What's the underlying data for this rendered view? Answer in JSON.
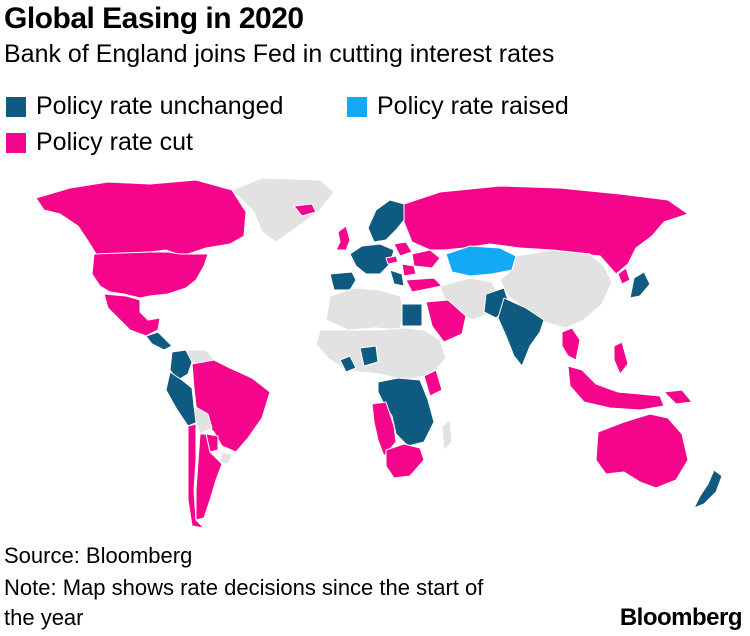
{
  "title": "Global Easing in 2020",
  "subtitle": "Bank of England joins Fed in cutting interest rates",
  "legend": {
    "unchanged": "Policy rate unchanged",
    "raised": "Policy rate raised",
    "cut": "Policy rate cut"
  },
  "colors": {
    "unchanged": "#0e5a80",
    "raised": "#12a9f5",
    "cut": "#f5058c",
    "no_data": "#e2e2e2",
    "background": "#ffffff"
  },
  "source": "Source: Bloomberg",
  "note_line1": "Note: Map shows rate decisions since the start of",
  "note_line2": "the year",
  "brand": "Bloomberg",
  "regions": [
    {
      "id": "canada",
      "status": "cut"
    },
    {
      "id": "united-states",
      "status": "cut"
    },
    {
      "id": "mexico",
      "status": "cut"
    },
    {
      "id": "greenland",
      "status": "no_data"
    },
    {
      "id": "central-america",
      "status": "unchanged"
    },
    {
      "id": "colombia",
      "status": "unchanged"
    },
    {
      "id": "venezuela",
      "status": "no_data"
    },
    {
      "id": "peru",
      "status": "unchanged"
    },
    {
      "id": "brazil",
      "status": "cut"
    },
    {
      "id": "bolivia",
      "status": "no_data"
    },
    {
      "id": "chile",
      "status": "cut"
    },
    {
      "id": "argentina",
      "status": "cut"
    },
    {
      "id": "paraguay",
      "status": "cut"
    },
    {
      "id": "uruguay",
      "status": "no_data"
    },
    {
      "id": "united-kingdom",
      "status": "cut"
    },
    {
      "id": "iceland",
      "status": "cut"
    },
    {
      "id": "iberia",
      "status": "unchanged"
    },
    {
      "id": "western-europe",
      "status": "unchanged"
    },
    {
      "id": "scandinavia",
      "status": "unchanged"
    },
    {
      "id": "poland",
      "status": "cut"
    },
    {
      "id": "czech-republic",
      "status": "cut"
    },
    {
      "id": "romania",
      "status": "cut"
    },
    {
      "id": "ukraine",
      "status": "cut"
    },
    {
      "id": "balkans",
      "status": "unchanged"
    },
    {
      "id": "turkey",
      "status": "cut"
    },
    {
      "id": "russia",
      "status": "cut"
    },
    {
      "id": "kazakhstan",
      "status": "raised"
    },
    {
      "id": "mongolia-china",
      "status": "no_data"
    },
    {
      "id": "japan",
      "status": "unchanged"
    },
    {
      "id": "south-korea",
      "status": "cut"
    },
    {
      "id": "north-africa",
      "status": "no_data"
    },
    {
      "id": "egypt",
      "status": "unchanged"
    },
    {
      "id": "saudi-arabia",
      "status": "cut"
    },
    {
      "id": "middle-east",
      "status": "no_data"
    },
    {
      "id": "pakistan",
      "status": "unchanged"
    },
    {
      "id": "india",
      "status": "unchanged"
    },
    {
      "id": "myanmar-thailand",
      "status": "cut"
    },
    {
      "id": "indonesia-malaysia",
      "status": "cut"
    },
    {
      "id": "philippines",
      "status": "cut"
    },
    {
      "id": "sahel",
      "status": "no_data"
    },
    {
      "id": "west-africa",
      "status": "unchanged"
    },
    {
      "id": "nigeria",
      "status": "unchanged"
    },
    {
      "id": "kenya",
      "status": "cut"
    },
    {
      "id": "central-africa",
      "status": "unchanged"
    },
    {
      "id": "angola-namibia",
      "status": "cut"
    },
    {
      "id": "south-africa",
      "status": "cut"
    },
    {
      "id": "madagascar",
      "status": "no_data"
    },
    {
      "id": "australia",
      "status": "cut"
    },
    {
      "id": "papua-new-guinea",
      "status": "cut"
    },
    {
      "id": "new-zealand",
      "status": "unchanged"
    }
  ]
}
